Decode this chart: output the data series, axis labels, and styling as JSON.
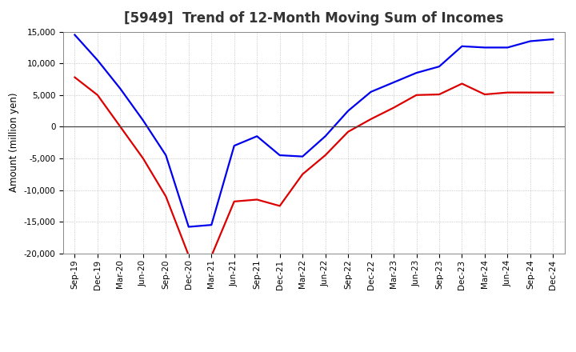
{
  "title": "[5949]  Trend of 12-Month Moving Sum of Incomes",
  "ylabel": "Amount (million yen)",
  "ylim": [
    -20000,
    15000
  ],
  "yticks": [
    -20000,
    -15000,
    -10000,
    -5000,
    0,
    5000,
    10000,
    15000
  ],
  "background_color": "#ffffff",
  "plot_bg_color": "#ffffff",
  "grid_color": "#bbbbbb",
  "x_labels": [
    "Sep-19",
    "Dec-19",
    "Mar-20",
    "Jun-20",
    "Sep-20",
    "Dec-20",
    "Mar-21",
    "Jun-21",
    "Sep-21",
    "Dec-21",
    "Mar-22",
    "Jun-22",
    "Sep-22",
    "Dec-22",
    "Mar-23",
    "Jun-23",
    "Sep-23",
    "Dec-23",
    "Mar-24",
    "Jun-24",
    "Sep-24",
    "Dec-24"
  ],
  "ordinary_income": [
    14500,
    10500,
    6000,
    1000,
    -4500,
    -15800,
    -15500,
    -3000,
    -1500,
    -4500,
    -4700,
    -1500,
    2500,
    5500,
    7000,
    8500,
    9500,
    12700,
    12500,
    12500,
    13500,
    13800
  ],
  "net_income": [
    7800,
    5000,
    0,
    -5000,
    -11000,
    -20300,
    -20400,
    -11800,
    -11500,
    -12500,
    -7500,
    -4500,
    -800,
    1200,
    3000,
    5000,
    5100,
    6800,
    5100,
    5400,
    5400,
    5400
  ],
  "ordinary_color": "#0000ee",
  "net_color": "#dd0000",
  "line_width": 1.6,
  "title_fontsize": 12,
  "title_color": "#333333",
  "tick_fontsize": 7.5,
  "ylabel_fontsize": 8.5,
  "legend_fontsize": 9
}
